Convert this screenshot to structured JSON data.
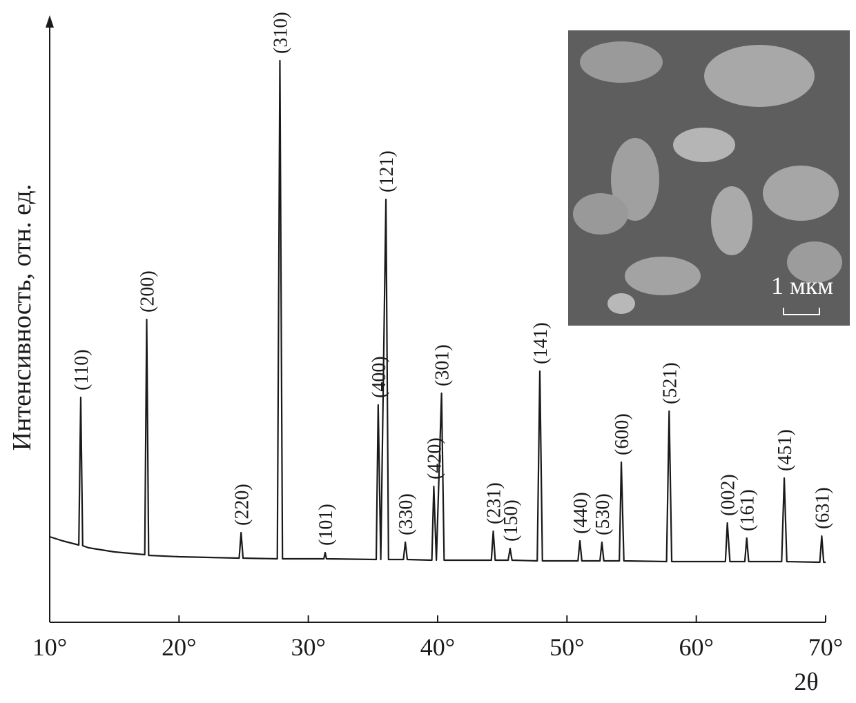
{
  "chart_data": {
    "type": "line",
    "ylabel": "Интенсивность, отн. ед.",
    "xlabel": "2θ",
    "inset_label": "1 мкм",
    "xlim": [
      10,
      70
    ],
    "ylim": [
      0,
      880
    ],
    "xticks": [
      {
        "value": 10,
        "label": "10°"
      },
      {
        "value": 20,
        "label": "20°"
      },
      {
        "value": 30,
        "label": "30°"
      },
      {
        "value": 40,
        "label": "40°"
      },
      {
        "value": 50,
        "label": "50°"
      },
      {
        "value": 60,
        "label": "60°"
      },
      {
        "value": 70,
        "label": "70°"
      }
    ],
    "series": [
      {
        "color": "#1a1a1a",
        "x": [
          10,
          11,
          12.25,
          12.4,
          12.55,
          13,
          15,
          17.35,
          17.5,
          17.65,
          20,
          24.65,
          24.8,
          24.95,
          27.6,
          27.8,
          28.0,
          30,
          31.2,
          31.3,
          31.4,
          35.25,
          35.4,
          35.6,
          36.0,
          36.2,
          37.35,
          37.5,
          37.65,
          39.55,
          39.7,
          39.9,
          40.3,
          40.5,
          44.15,
          44.3,
          44.45,
          45.45,
          45.6,
          45.75,
          47.7,
          47.9,
          48.1,
          50.85,
          51.0,
          51.15,
          52.55,
          52.7,
          52.85,
          54.05,
          54.2,
          54.4,
          57.7,
          57.9,
          58.1,
          62.25,
          62.4,
          62.6,
          63.75,
          63.9,
          64.05,
          66.6,
          66.8,
          67.0,
          69.55,
          69.7,
          69.85,
          70
        ],
        "values": [
          124,
          118,
          112,
          326,
          111,
          108,
          102,
          98,
          439,
          97,
          95,
          93,
          130,
          93,
          92,
          814,
          92,
          92,
          92,
          101,
          92,
          91,
          315,
          91,
          613,
          91,
          91,
          116,
          91,
          90,
          197,
          90,
          332,
          90,
          90,
          132,
          90,
          90,
          107,
          90,
          89,
          364,
          89,
          89,
          118,
          89,
          89,
          116,
          89,
          89,
          232,
          89,
          88,
          306,
          88,
          88,
          144,
          88,
          88,
          122,
          88,
          88,
          209,
          88,
          87,
          125,
          87,
          87
        ]
      }
    ],
    "peaks": [
      {
        "label": "(110)",
        "x": 12.4,
        "y": 326
      },
      {
        "label": "(200)",
        "x": 17.5,
        "y": 439
      },
      {
        "label": "(220)",
        "x": 24.8,
        "y": 130
      },
      {
        "label": "(310)",
        "x": 27.8,
        "y": 814
      },
      {
        "label": "(101)",
        "x": 31.3,
        "y": 101
      },
      {
        "label": "(400)",
        "x": 35.4,
        "y": 315
      },
      {
        "label": "(121)",
        "x": 36.0,
        "y": 613
      },
      {
        "label": "(330)",
        "x": 37.5,
        "y": 116
      },
      {
        "label": "(420)",
        "x": 39.7,
        "y": 197
      },
      {
        "label": "(301)",
        "x": 40.3,
        "y": 332
      },
      {
        "label": "(231)",
        "x": 44.3,
        "y": 132
      },
      {
        "label": "(150)",
        "x": 45.6,
        "y": 107
      },
      {
        "label": "(141)",
        "x": 47.9,
        "y": 364
      },
      {
        "label": "(440)",
        "x": 51.0,
        "y": 118
      },
      {
        "label": "(530)",
        "x": 52.7,
        "y": 116
      },
      {
        "label": "(600)",
        "x": 54.2,
        "y": 232
      },
      {
        "label": "(521)",
        "x": 57.9,
        "y": 306
      },
      {
        "label": "(002)",
        "x": 62.4,
        "y": 144
      },
      {
        "label": "(161)",
        "x": 63.9,
        "y": 122
      },
      {
        "label": "(451)",
        "x": 66.8,
        "y": 209
      },
      {
        "label": "(631)",
        "x": 69.7,
        "y": 125
      }
    ]
  }
}
